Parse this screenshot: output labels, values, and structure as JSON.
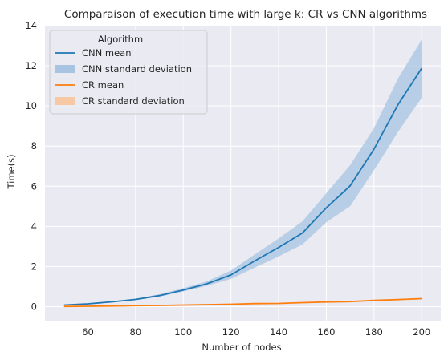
{
  "chart_data": {
    "type": "line",
    "title": "Comparaison of execution time with large k: CR vs CNN algorithms",
    "xlabel": "Number of nodes",
    "ylabel": "Time(s)",
    "xlim": [
      42,
      208
    ],
    "ylim": [
      -0.7,
      14
    ],
    "xticks": [
      60,
      80,
      100,
      120,
      140,
      160,
      180,
      200
    ],
    "yticks": [
      0,
      2,
      4,
      6,
      8,
      10,
      12,
      14
    ],
    "grid": true,
    "legend": {
      "title": "Algorithm",
      "placement": "top-left",
      "entries": [
        "CNN mean",
        "CNN standard deviation",
        "CR mean",
        "CR standard deviation"
      ]
    },
    "x": [
      50,
      60,
      70,
      80,
      90,
      100,
      110,
      120,
      130,
      140,
      150,
      160,
      170,
      180,
      190,
      200
    ],
    "series": [
      {
        "name": "CNN mean",
        "color": "#1f77b4",
        "band_color": "#a7c4e2",
        "values": [
          0.08,
          0.14,
          0.24,
          0.36,
          0.55,
          0.83,
          1.14,
          1.58,
          2.28,
          2.95,
          3.67,
          4.92,
          6.02,
          7.85,
          10.05,
          11.88
        ],
        "lower": [
          0.06,
          0.12,
          0.21,
          0.33,
          0.5,
          0.76,
          1.04,
          1.38,
          1.95,
          2.5,
          3.1,
          4.2,
          5.0,
          6.8,
          8.7,
          10.4
        ],
        "upper": [
          0.1,
          0.16,
          0.27,
          0.4,
          0.62,
          0.92,
          1.26,
          1.8,
          2.6,
          3.4,
          4.25,
          5.65,
          7.05,
          8.9,
          11.35,
          13.3
        ]
      },
      {
        "name": "CR mean",
        "color": "#ff7f0e",
        "band_color": "#f6c9a4",
        "values": [
          0.01,
          0.02,
          0.03,
          0.05,
          0.06,
          0.08,
          0.1,
          0.12,
          0.15,
          0.16,
          0.2,
          0.23,
          0.25,
          0.31,
          0.35,
          0.4
        ],
        "lower": [
          0.0,
          0.01,
          0.02,
          0.04,
          0.05,
          0.07,
          0.09,
          0.11,
          0.13,
          0.14,
          0.18,
          0.21,
          0.23,
          0.29,
          0.33,
          0.37
        ],
        "upper": [
          0.02,
          0.03,
          0.04,
          0.06,
          0.07,
          0.09,
          0.11,
          0.13,
          0.17,
          0.18,
          0.22,
          0.25,
          0.27,
          0.33,
          0.37,
          0.43
        ]
      }
    ]
  }
}
